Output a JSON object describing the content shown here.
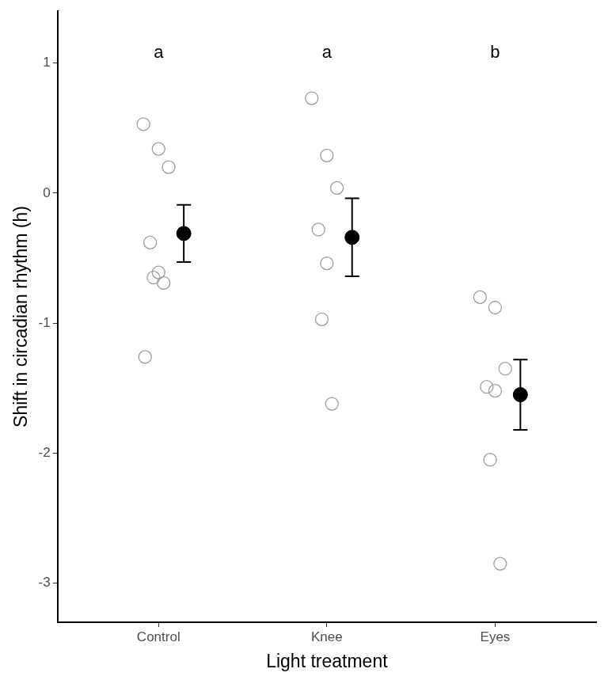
{
  "chart_data": {
    "type": "scatter",
    "xlabel": "Light treatment",
    "ylabel": "Shift in circadian rhythm (h)",
    "categories": [
      "Control",
      "Knee",
      "Eyes"
    ],
    "points": [
      [
        0.53,
        0.34,
        0.2,
        -0.38,
        -0.61,
        -0.65,
        -0.69,
        -1.26
      ],
      [
        0.73,
        0.29,
        0.04,
        -0.28,
        -0.54,
        -0.97,
        -1.62
      ],
      [
        -0.8,
        -0.88,
        -1.35,
        -1.49,
        -1.52,
        -2.05,
        -2.85
      ]
    ],
    "means": [
      -0.31,
      -0.34,
      -1.55
    ],
    "errors": [
      0.22,
      0.3,
      0.27
    ],
    "annotations": [
      "a",
      "a",
      "b"
    ],
    "ylim": [
      -3.3,
      1.4
    ],
    "yticks": [
      -3,
      -2,
      -1,
      0,
      1
    ],
    "grid": false
  }
}
